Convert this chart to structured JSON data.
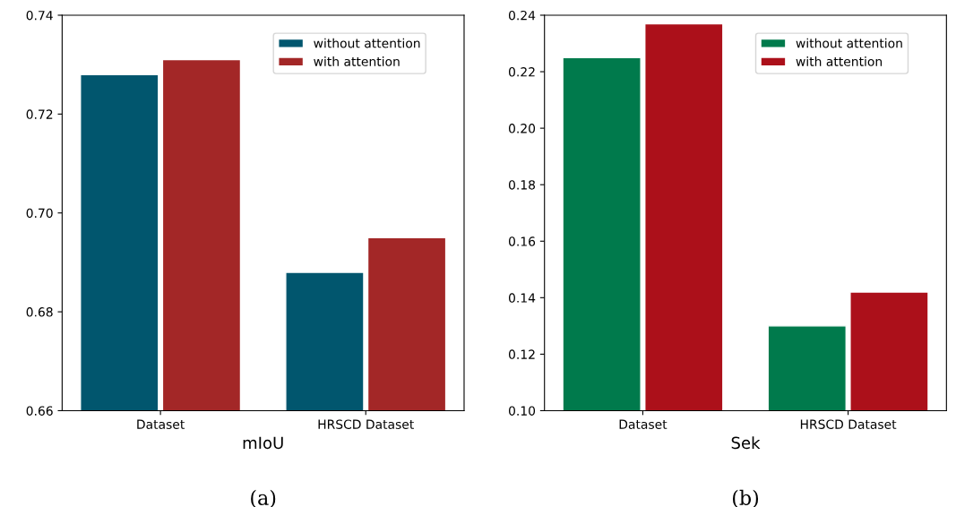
{
  "chart_data": [
    {
      "type": "bar",
      "xlabel": "mIoU",
      "categories": [
        "Dataset",
        "HRSCD Dataset"
      ],
      "series": [
        {
          "name": "without attention",
          "color": "#01566e",
          "values": [
            0.728,
            0.688
          ]
        },
        {
          "name": "with attention",
          "color": "#a32727",
          "values": [
            0.731,
            0.695
          ]
        }
      ],
      "ylim": [
        0.66,
        0.74
      ],
      "yticks": [
        0.66,
        0.68,
        {
          "value": 0.7,
          "label": "0.70"
        },
        0.72,
        0.74
      ],
      "legend": "top right",
      "annotations": [
        "(a)"
      ]
    },
    {
      "type": "bar",
      "xlabel": "Sek",
      "categories": [
        "Dataset",
        "HRSCD Dataset"
      ],
      "series": [
        {
          "name": "without attention",
          "color": "#007a4c",
          "values": [
            0.225,
            0.13
          ]
        },
        {
          "name": "with attention",
          "color": "#ac101a",
          "values": [
            0.237,
            0.142
          ]
        }
      ],
      "ylim": [
        0.1,
        0.24
      ],
      "yticks": [
        {
          "value": 0.1,
          "label": "0.10"
        },
        0.12,
        0.14,
        0.16,
        0.18,
        {
          "value": 0.2,
          "label": "0.20"
        },
        0.22,
        0.24
      ],
      "legend": "top right",
      "annotations": [
        "(b)"
      ]
    }
  ]
}
